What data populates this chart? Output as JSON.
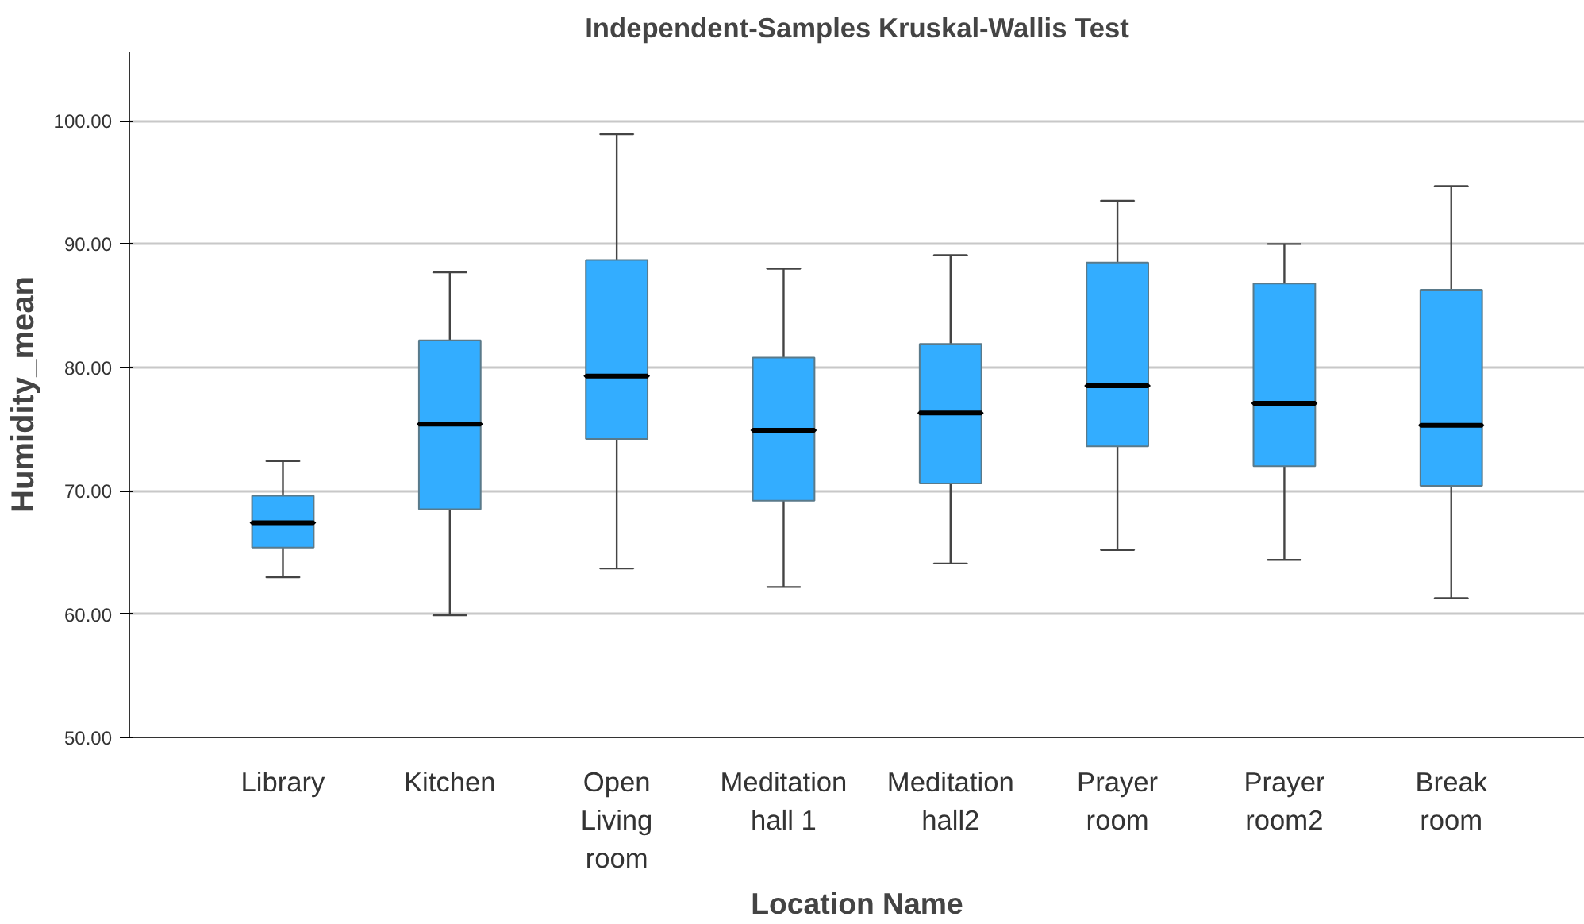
{
  "chart_data": {
    "type": "box",
    "title": "Independent-Samples Kruskal-Wallis Test",
    "xlabel": "Location Name",
    "ylabel": "Humidity_mean",
    "categories": [
      "Library",
      "Kitchen",
      "Open\nLiving\nroom",
      "Meditation\nhall 1",
      "Meditation\nhall2",
      "Prayer\nroom",
      "Prayer\nroom2",
      "Break\nroom"
    ],
    "color": "#33adff",
    "boxes": [
      {
        "low": 63.0,
        "q1": 65.4,
        "median": 67.4,
        "q3": 69.6,
        "high": 72.4
      },
      {
        "low": 59.9,
        "q1": 68.5,
        "median": 75.4,
        "q3": 82.2,
        "high": 87.7
      },
      {
        "low": 63.7,
        "q1": 74.2,
        "median": 79.3,
        "q3": 88.7,
        "high": 98.9
      },
      {
        "low": 62.2,
        "q1": 69.2,
        "median": 74.9,
        "q3": 80.8,
        "high": 88.0
      },
      {
        "low": 64.1,
        "q1": 70.6,
        "median": 76.3,
        "q3": 81.9,
        "high": 89.1
      },
      {
        "low": 65.2,
        "q1": 73.6,
        "median": 78.5,
        "q3": 88.5,
        "high": 93.5
      },
      {
        "low": 64.4,
        "q1": 72.0,
        "median": 77.1,
        "q3": 86.8,
        "high": 90.0
      },
      {
        "low": 61.3,
        "q1": 70.4,
        "median": 75.3,
        "q3": 86.3,
        "high": 94.7
      }
    ],
    "ylim": [
      50,
      105.6
    ],
    "yticks": [
      {
        "value": 50,
        "label": "50.00"
      },
      {
        "value": 60,
        "label": "60.00"
      },
      {
        "value": 70,
        "label": "70.00"
      },
      {
        "value": 80,
        "label": "80.00"
      },
      {
        "value": 90,
        "label": "90.00"
      },
      {
        "value": 100,
        "label": "100.00"
      }
    ],
    "grid": "y"
  }
}
